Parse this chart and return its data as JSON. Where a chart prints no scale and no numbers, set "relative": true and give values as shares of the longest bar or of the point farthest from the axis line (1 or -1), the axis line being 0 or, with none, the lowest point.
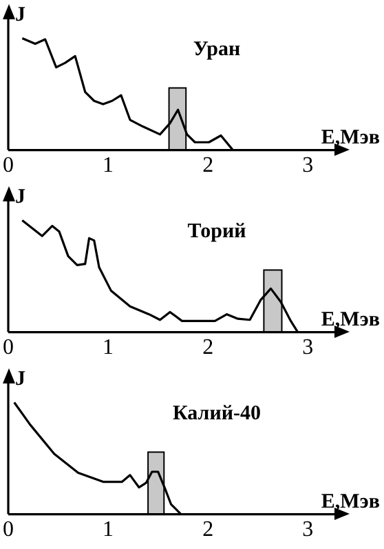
{
  "chart_data": [
    {
      "type": "line",
      "title": "Уран",
      "xlabel": "E,Мэв",
      "ylabel": "J",
      "relative": true,
      "xlim": [
        0,
        3.35
      ],
      "xticks": [
        0,
        1,
        2,
        3
      ],
      "grid": false,
      "legend": false,
      "marker": "none",
      "series": [
        {
          "color": "#000000",
          "x": [
            0.14,
            0.27,
            0.37,
            0.48,
            0.57,
            0.67,
            0.77,
            0.86,
            0.95,
            1.04,
            1.13,
            1.22,
            1.35,
            1.52,
            1.62,
            1.7,
            1.79,
            1.87,
            2.01,
            2.13,
            2.25
          ],
          "values": [
            1,
            0.95,
            0.99,
            0.74,
            0.78,
            0.84,
            0.52,
            0.44,
            0.41,
            0.44,
            0.49,
            0.27,
            0.21,
            0.14,
            0.24,
            0.36,
            0.14,
            0.07,
            0.07,
            0.13,
            0
          ]
        }
      ],
      "bands": [
        {
          "axis": "x",
          "from": 1.61,
          "to": 1.78,
          "color": "#c8c8c8"
        }
      ]
    },
    {
      "type": "line",
      "title": "Торий",
      "xlabel": "E,Мэв",
      "ylabel": "J",
      "relative": true,
      "xlim": [
        0,
        3.35
      ],
      "xticks": [
        0,
        1,
        2,
        3
      ],
      "grid": false,
      "legend": false,
      "marker": "none",
      "series": [
        {
          "color": "#000000",
          "x": [
            0.14,
            0.34,
            0.44,
            0.51,
            0.6,
            0.69,
            0.77,
            0.81,
            0.86,
            0.91,
            1.03,
            1.22,
            1.41,
            1.52,
            1.62,
            1.74,
            2.07,
            2.19,
            2.3,
            2.42,
            2.53,
            2.63,
            2.73,
            2.83,
            2.9
          ],
          "values": [
            1,
            0.86,
            0.95,
            0.9,
            0.68,
            0.6,
            0.61,
            0.84,
            0.82,
            0.58,
            0.37,
            0.23,
            0.16,
            0.11,
            0.18,
            0.1,
            0.1,
            0.16,
            0.12,
            0.11,
            0.29,
            0.39,
            0.27,
            0.1,
            0
          ]
        }
      ],
      "bands": [
        {
          "axis": "x",
          "from": 2.56,
          "to": 2.74,
          "color": "#c8c8c8"
        }
      ]
    },
    {
      "type": "line",
      "title": "Калий-40",
      "xlabel": "E,Мэв",
      "ylabel": "J",
      "relative": true,
      "xlim": [
        0,
        3.35
      ],
      "xticks": [
        0,
        1,
        2,
        3
      ],
      "grid": false,
      "legend": false,
      "marker": "none",
      "series": [
        {
          "color": "#000000",
          "x": [
            0.06,
            0.22,
            0.46,
            0.7,
            0.95,
            1.14,
            1.22,
            1.31,
            1.38,
            1.44,
            1.5,
            1.57,
            1.63,
            1.73
          ],
          "values": [
            1,
            0.8,
            0.54,
            0.37,
            0.29,
            0.29,
            0.35,
            0.24,
            0.28,
            0.38,
            0.38,
            0.23,
            0.09,
            0
          ]
        }
      ],
      "bands": [
        {
          "axis": "x",
          "from": 1.4,
          "to": 1.56,
          "color": "#c8c8c8"
        }
      ]
    }
  ]
}
